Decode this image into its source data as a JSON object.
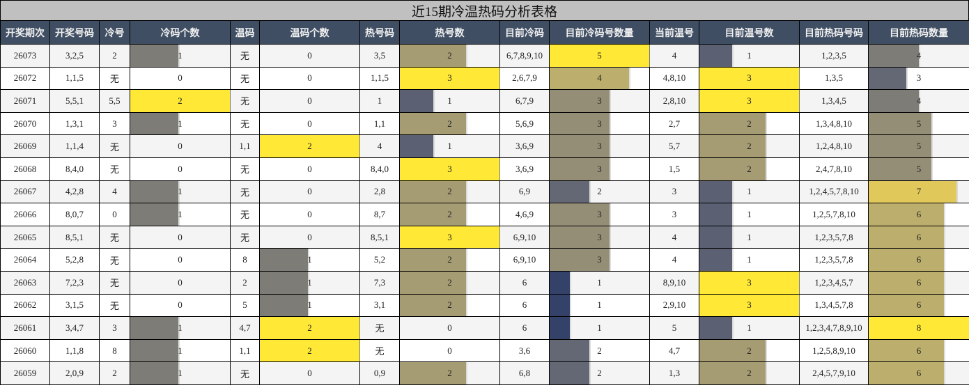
{
  "title": "近15期冷温热码分析表格",
  "headers": [
    "开奖期次",
    "开奖号码",
    "冷号",
    "冷码个数",
    "温码",
    "温码个数",
    "热号码",
    "热号数",
    "目前冷码",
    "目前冷码号数量",
    "当前温号",
    "目前温号数",
    "目前热码号码",
    "目前热码数量"
  ],
  "colors": {
    "header_bg": "#3f4e63",
    "title_bg": "#c0c0c0",
    "yellow": "#ffe936",
    "gray": "#7d7c77",
    "olive": "#a69c74",
    "khaki": "#bcae6c",
    "mustard": "#e0c95a",
    "slate": "#5b6072",
    "steel": "#646874",
    "navy": "#34426a",
    "taupe": "#958e77"
  },
  "rows": [
    {
      "period": "26073",
      "numbers": "3,2,5",
      "cold": "2",
      "cold_count": "1",
      "warm": "无",
      "warm_count": "0",
      "hot": "3,5",
      "hot_count": "2",
      "cur_cold": "6,7,8,9,10",
      "cur_cold_count": "5",
      "cur_warm": "4",
      "cur_warm_count": "1",
      "cur_hot": "1,2,3,5",
      "cur_hot_count": "4"
    },
    {
      "period": "26072",
      "numbers": "1,1,5",
      "cold": "无",
      "cold_count": "0",
      "warm": "无",
      "warm_count": "0",
      "hot": "1,1,5",
      "hot_count": "3",
      "cur_cold": "2,6,7,9",
      "cur_cold_count": "4",
      "cur_warm": "4,8,10",
      "cur_warm_count": "3",
      "cur_hot": "1,3,5",
      "cur_hot_count": "3"
    },
    {
      "period": "26071",
      "numbers": "5,5,1",
      "cold": "5,5",
      "cold_count": "2",
      "warm": "无",
      "warm_count": "0",
      "hot": "1",
      "hot_count": "1",
      "cur_cold": "6,7,9",
      "cur_cold_count": "3",
      "cur_warm": "2,8,10",
      "cur_warm_count": "3",
      "cur_hot": "1,3,4,5",
      "cur_hot_count": "4"
    },
    {
      "period": "26070",
      "numbers": "1,3,1",
      "cold": "3",
      "cold_count": "1",
      "warm": "无",
      "warm_count": "0",
      "hot": "1,1",
      "hot_count": "2",
      "cur_cold": "5,6,9",
      "cur_cold_count": "3",
      "cur_warm": "2,7",
      "cur_warm_count": "2",
      "cur_hot": "1,3,4,8,10",
      "cur_hot_count": "5"
    },
    {
      "period": "26069",
      "numbers": "1,1,4",
      "cold": "无",
      "cold_count": "0",
      "warm": "1,1",
      "warm_count": "2",
      "hot": "4",
      "hot_count": "1",
      "cur_cold": "3,6,9",
      "cur_cold_count": "3",
      "cur_warm": "5,7",
      "cur_warm_count": "2",
      "cur_hot": "1,2,4,8,10",
      "cur_hot_count": "5"
    },
    {
      "period": "26068",
      "numbers": "8,4,0",
      "cold": "无",
      "cold_count": "0",
      "warm": "无",
      "warm_count": "0",
      "hot": "8,4,0",
      "hot_count": "3",
      "cur_cold": "3,6,9",
      "cur_cold_count": "3",
      "cur_warm": "1,5",
      "cur_warm_count": "2",
      "cur_hot": "2,4,7,8,10",
      "cur_hot_count": "5"
    },
    {
      "period": "26067",
      "numbers": "4,2,8",
      "cold": "4",
      "cold_count": "1",
      "warm": "无",
      "warm_count": "0",
      "hot": "2,8",
      "hot_count": "2",
      "cur_cold": "6,9",
      "cur_cold_count": "2",
      "cur_warm": "3",
      "cur_warm_count": "1",
      "cur_hot": "1,2,4,5,7,8,10",
      "cur_hot_count": "7"
    },
    {
      "period": "26066",
      "numbers": "8,0,7",
      "cold": "0",
      "cold_count": "1",
      "warm": "无",
      "warm_count": "0",
      "hot": "8,7",
      "hot_count": "2",
      "cur_cold": "4,6,9",
      "cur_cold_count": "3",
      "cur_warm": "3",
      "cur_warm_count": "1",
      "cur_hot": "1,2,5,7,8,10",
      "cur_hot_count": "6"
    },
    {
      "period": "26065",
      "numbers": "8,5,1",
      "cold": "无",
      "cold_count": "0",
      "warm": "无",
      "warm_count": "0",
      "hot": "8,5,1",
      "hot_count": "3",
      "cur_cold": "6,9,10",
      "cur_cold_count": "3",
      "cur_warm": "4",
      "cur_warm_count": "1",
      "cur_hot": "1,2,3,5,7,8",
      "cur_hot_count": "6"
    },
    {
      "period": "26064",
      "numbers": "5,2,8",
      "cold": "无",
      "cold_count": "0",
      "warm": "8",
      "warm_count": "1",
      "hot": "5,2",
      "hot_count": "2",
      "cur_cold": "6,9,10",
      "cur_cold_count": "3",
      "cur_warm": "4",
      "cur_warm_count": "1",
      "cur_hot": "1,2,3,5,7,8",
      "cur_hot_count": "6"
    },
    {
      "period": "26063",
      "numbers": "7,2,3",
      "cold": "无",
      "cold_count": "0",
      "warm": "2",
      "warm_count": "1",
      "hot": "7,3",
      "hot_count": "2",
      "cur_cold": "6",
      "cur_cold_count": "1",
      "cur_warm": "8,9,10",
      "cur_warm_count": "3",
      "cur_hot": "1,2,3,4,5,7",
      "cur_hot_count": "6"
    },
    {
      "period": "26062",
      "numbers": "3,1,5",
      "cold": "无",
      "cold_count": "0",
      "warm": "5",
      "warm_count": "1",
      "hot": "3,1",
      "hot_count": "2",
      "cur_cold": "6",
      "cur_cold_count": "1",
      "cur_warm": "2,9,10",
      "cur_warm_count": "3",
      "cur_hot": "1,3,4,5,7,8",
      "cur_hot_count": "6"
    },
    {
      "period": "26061",
      "numbers": "3,4,7",
      "cold": "3",
      "cold_count": "1",
      "warm": "4,7",
      "warm_count": "2",
      "hot": "无",
      "hot_count": "0",
      "cur_cold": "6",
      "cur_cold_count": "1",
      "cur_warm": "5",
      "cur_warm_count": "1",
      "cur_hot": "1,2,3,4,7,8,9,10",
      "cur_hot_count": "8"
    },
    {
      "period": "26060",
      "numbers": "1,1,8",
      "cold": "8",
      "cold_count": "1",
      "warm": "1,1",
      "warm_count": "2",
      "hot": "无",
      "hot_count": "0",
      "cur_cold": "3,6",
      "cur_cold_count": "2",
      "cur_warm": "4,7",
      "cur_warm_count": "2",
      "cur_hot": "1,2,5,8,9,10",
      "cur_hot_count": "6"
    },
    {
      "period": "26059",
      "numbers": "2,0,9",
      "cold": "2",
      "cold_count": "1",
      "warm": "无",
      "warm_count": "0",
      "hot": "0,9",
      "hot_count": "2",
      "cur_cold": "6,8",
      "cur_cold_count": "2",
      "cur_warm": "1,3",
      "cur_warm_count": "2",
      "cur_hot": "2,4,5,7,9,10",
      "cur_hot_count": "6"
    }
  ]
}
